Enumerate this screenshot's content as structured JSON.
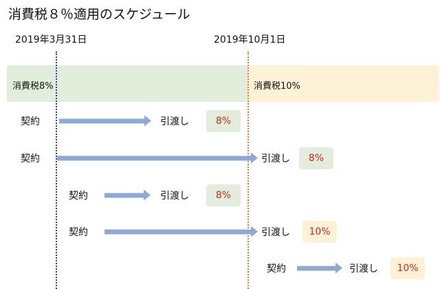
{
  "title": "消費税８％適用のスケジュール",
  "dates": [
    "2019年3月31日",
    "2019年10月1日"
  ],
  "bands": [
    {
      "label": "消費税8%",
      "color": "#e2eedb"
    },
    {
      "label": "消費税10%",
      "color": "#fdf1d6"
    }
  ],
  "rows": [
    {
      "contract": "契約",
      "delivery": "引渡し",
      "rate": "8%"
    },
    {
      "contract": "契約",
      "delivery": "引渡し",
      "rate": "8%"
    },
    {
      "contract": "契約",
      "delivery": "引渡し",
      "rate": "8%"
    },
    {
      "contract": "契約",
      "delivery": "引渡し",
      "rate": "10%"
    },
    {
      "contract": "契約",
      "delivery": "引渡し",
      "rate": "10%"
    }
  ],
  "colors": {
    "green": "#e2eedb",
    "orange": "#fdf1d6",
    "arrow": "#8ea9d9",
    "rate_text": "#d0261f",
    "line_blue": "#2b3aa0",
    "line_orange": "#e07b2a"
  }
}
